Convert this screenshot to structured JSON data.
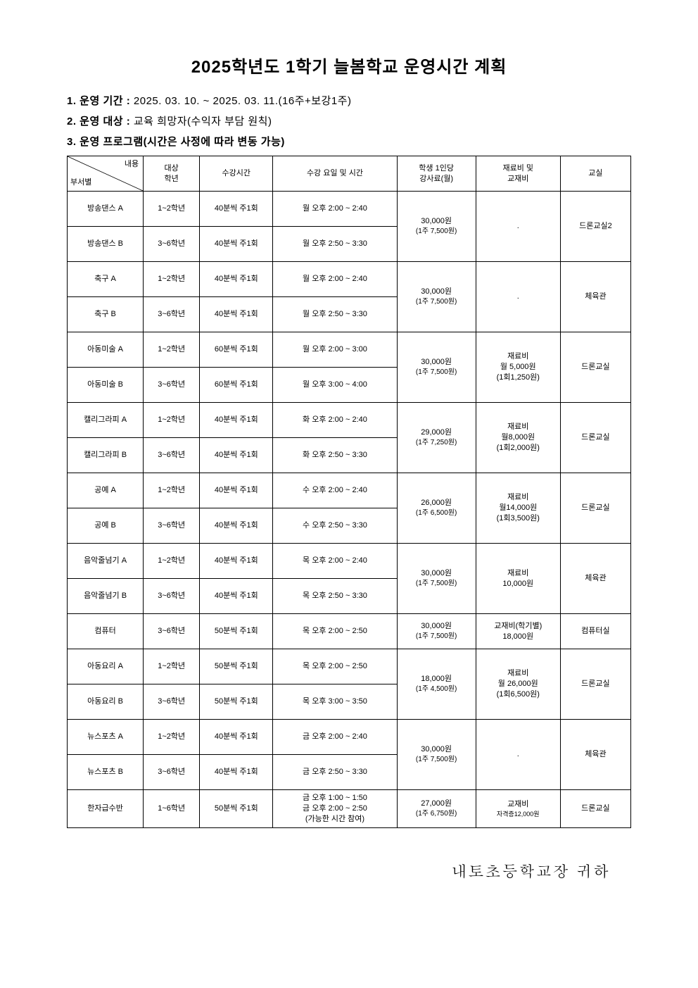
{
  "title": "2025학년도 1학기 늘봄학교 운영시간 계획",
  "info": {
    "period_label": "1. 운영 기간 :",
    "period_value": " 2025. 03. 10. ~ 2025. 03. 11.(16주+보강1주)",
    "target_label": "2. 운영 대상 :",
    "target_value": " 교육 희망자(수익자 부담 원칙)",
    "program_label": "3. 운영 프로그램(시간은 사정에 따라 변동 가능)"
  },
  "headers": {
    "diag_top": "내용",
    "diag_bot": "부서별",
    "grade": "대상\n학년",
    "duration": "수강시간",
    "schedule": "수강 요일 및 시간",
    "fee": "학생 1인당\n강사료(월)",
    "material": "재료비 및\n교재비",
    "room": "교실"
  },
  "rows": [
    {
      "name": "방송댄스 A",
      "grade": "1~2학년",
      "dur": "40분씩 주1회",
      "sched": "월 오후 2:00 ~ 2:40"
    },
    {
      "name": "방송댄스 B",
      "grade": "3~6학년",
      "dur": "40분씩 주1회",
      "sched": "월 오후 2:50 ~ 3:30"
    },
    {
      "name": "축구 A",
      "grade": "1~2학년",
      "dur": "40분씩 주1회",
      "sched": "월 오후 2:00 ~ 2:40"
    },
    {
      "name": "축구 B",
      "grade": "3~6학년",
      "dur": "40분씩 주1회",
      "sched": "월 오후 2:50 ~ 3:30"
    },
    {
      "name": "아동미술 A",
      "grade": "1~2학년",
      "dur": "60분씩 주1회",
      "sched": "월 오후 2:00 ~ 3:00"
    },
    {
      "name": "아동미술 B",
      "grade": "3~6학년",
      "dur": "60분씩 주1회",
      "sched": "월 오후 3:00 ~ 4:00"
    },
    {
      "name": "캘리그라피 A",
      "grade": "1~2학년",
      "dur": "40분씩 주1회",
      "sched": "화 오후 2:00 ~ 2:40"
    },
    {
      "name": "캘리그라피 B",
      "grade": "3~6학년",
      "dur": "40분씩 주1회",
      "sched": "화 오후 2:50 ~ 3:30"
    },
    {
      "name": "공예 A",
      "grade": "1~2학년",
      "dur": "40분씩 주1회",
      "sched": "수 오후 2:00 ~ 2:40"
    },
    {
      "name": "공예 B",
      "grade": "3~6학년",
      "dur": "40분씩 주1회",
      "sched": "수 오후 2:50 ~ 3:30"
    },
    {
      "name": "음악줄넘기 A",
      "grade": "1~2학년",
      "dur": "40분씩 주1회",
      "sched": "목 오후 2:00 ~ 2:40"
    },
    {
      "name": "음악줄넘기 B",
      "grade": "3~6학년",
      "dur": "40분씩 주1회",
      "sched": "목 오후 2:50 ~ 3:30"
    },
    {
      "name": "컴퓨터",
      "grade": "3~6학년",
      "dur": "50분씩 주1회",
      "sched": "목 오후 2:00 ~ 2:50"
    },
    {
      "name": "아동요리 A",
      "grade": "1~2학년",
      "dur": "50분씩 주1회",
      "sched": "목 오후 2:00 ~ 2:50"
    },
    {
      "name": "아동요리 B",
      "grade": "3~6학년",
      "dur": "50분씩 주1회",
      "sched": "목 오후 3:00 ~ 3:50"
    },
    {
      "name": "뉴스포츠 A",
      "grade": "1~2학년",
      "dur": "40분씩 주1회",
      "sched": "금 오후 2:00 ~ 2:40"
    },
    {
      "name": "뉴스포츠 B",
      "grade": "3~6학년",
      "dur": "40분씩 주1회",
      "sched": "금 오후 2:50 ~ 3:30"
    },
    {
      "name": "한자급수반",
      "grade": "1~6학년",
      "dur": "50분씩 주1회",
      "sched": "금 오후 1:00 ~ 1:50\n금 오후 2:00 ~ 2:50\n(가능한 시간 참여)"
    }
  ],
  "groups": [
    {
      "span": 2,
      "fee_main": "30,000원",
      "fee_sub": "(1주 7,500원)",
      "mat": ".",
      "room": "드론교실2"
    },
    {
      "span": 2,
      "fee_main": "30,000원",
      "fee_sub": "(1주 7,500원)",
      "mat": ".",
      "room": "체육관"
    },
    {
      "span": 2,
      "fee_main": "30,000원",
      "fee_sub": "(1주 7,500원)",
      "mat": "재료비\n월 5,000원\n(1회1,250원)",
      "room": "드론교실"
    },
    {
      "span": 2,
      "fee_main": "29,000원",
      "fee_sub": "(1주 7,250원)",
      "mat": "재료비\n월8,000원\n(1회2,000원)",
      "room": "드론교실"
    },
    {
      "span": 2,
      "fee_main": "26,000원",
      "fee_sub": "(1주 6,500원)",
      "mat": "재료비\n월14,000원\n(1회3,500원)",
      "room": "드론교실"
    },
    {
      "span": 2,
      "fee_main": "30,000원",
      "fee_sub": "(1주 7,500원)",
      "mat": "재료비\n10,000원",
      "room": "체육관"
    },
    {
      "span": 1,
      "fee_main": "30,000원",
      "fee_sub": "(1주 7,500원)",
      "mat": "교재비(학기별)\n18,000원",
      "room": "컴퓨터실"
    },
    {
      "span": 2,
      "fee_main": "18,000원",
      "fee_sub": "(1주 4,500원)",
      "mat": "재료비\n월 26,000원\n(1회6,500원)",
      "room": "드론교실"
    },
    {
      "span": 2,
      "fee_main": "30,000원",
      "fee_sub": "(1주 7,500원)",
      "mat": ".",
      "room": "체육관"
    },
    {
      "span": 1,
      "fee_main": "27,000원",
      "fee_sub": "(1주 6,750원)",
      "mat": "교재비",
      "mat_sub": "자격증12,000원",
      "room": "드론교실"
    }
  ],
  "footer": "내토초등학교장 귀하"
}
